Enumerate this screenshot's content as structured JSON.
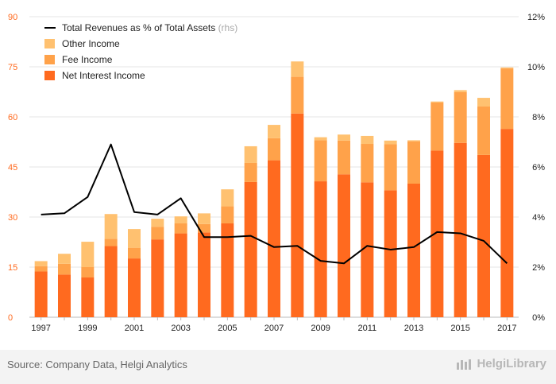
{
  "chart_data": {
    "type": "bar",
    "stacked": true,
    "categories": [
      "1997",
      "1998",
      "1999",
      "2000",
      "2001",
      "2002",
      "2003",
      "2004",
      "2005",
      "2006",
      "2007",
      "2008",
      "2009",
      "2010",
      "2011",
      "2012",
      "2013",
      "2014",
      "2015",
      "2016",
      "2017"
    ],
    "x_tick_labels": [
      "1997",
      "1999",
      "2001",
      "2003",
      "2005",
      "2007",
      "2009",
      "2011",
      "2013",
      "2015",
      "2017"
    ],
    "y_left": {
      "min": 0,
      "max": 90,
      "ticks": [
        "0",
        "15",
        "30",
        "45",
        "60",
        "75",
        "90"
      ]
    },
    "y_right": {
      "min": 0,
      "max": 12,
      "ticks": [
        "0%",
        "2%",
        "4%",
        "6%",
        "8%",
        "10%",
        "12%"
      ]
    },
    "grid": true,
    "legend_position": "top-left",
    "series": [
      {
        "name": "Net Interest Income",
        "color": "#ff6a1f",
        "values": [
          13.7,
          12.8,
          11.9,
          21.3,
          17.6,
          23.3,
          25.1,
          25.4,
          28.1,
          40.5,
          47.0,
          61.0,
          40.7,
          42.8,
          40.4,
          38.0,
          40.0,
          49.9,
          52.2,
          48.6,
          56.4
        ]
      },
      {
        "name": "Fee Income",
        "color": "#ffa24a",
        "values": [
          1.6,
          3.2,
          3.1,
          2.2,
          3.2,
          3.8,
          3.0,
          2.5,
          5.1,
          5.7,
          6.6,
          11.0,
          12.3,
          10.1,
          11.5,
          13.8,
          12.7,
          14.4,
          15.2,
          14.5,
          18.1
        ]
      },
      {
        "name": "Other Income",
        "color": "#ffc170",
        "values": [
          1.5,
          3.0,
          7.6,
          7.4,
          5.6,
          2.4,
          2.1,
          3.2,
          5.1,
          5.0,
          4.0,
          4.6,
          0.9,
          1.8,
          2.4,
          1.1,
          0.3,
          0.3,
          0.6,
          2.6,
          0.3
        ]
      }
    ],
    "line_series": {
      "name": "Total Revenues as % of Total Assets",
      "name_suffix": "(rhs)",
      "color": "#000000",
      "axis": "right",
      "values": [
        4.1,
        4.15,
        4.8,
        6.9,
        4.2,
        4.1,
        4.75,
        3.2,
        3.2,
        3.25,
        2.8,
        2.85,
        2.25,
        2.15,
        2.85,
        2.7,
        2.8,
        3.4,
        3.35,
        3.05,
        2.15
      ]
    },
    "legend_order": [
      "Total Revenues as % of Total Assets",
      "Other Income",
      "Fee Income",
      "Net Interest Income"
    ]
  },
  "footer": {
    "source": "Source: Company Data, Helgi Analytics",
    "brand": "HelgiLibrary"
  }
}
